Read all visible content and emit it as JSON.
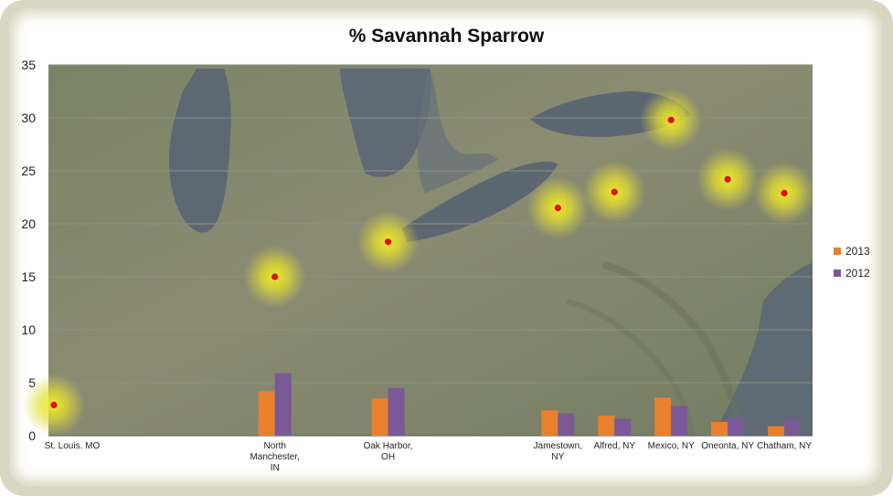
{
  "chart_data": {
    "type": "bar",
    "title": "% Savannah Sparrow",
    "xlabel": "",
    "ylabel": "",
    "ylim": [
      0,
      35
    ],
    "yticks": [
      0,
      5,
      10,
      15,
      20,
      25,
      30,
      35
    ],
    "grid": true,
    "legend_position": "right",
    "categories": [
      [
        "St. Louis. MO"
      ],
      [
        "North",
        "Manchester,",
        "IN"
      ],
      [
        "Oak Harbor,",
        "OH"
      ],
      [
        "Jamestown,",
        "NY"
      ],
      [
        "Alfred, NY"
      ],
      [
        "Mexico, NY"
      ],
      [
        "Oneonta, NY"
      ],
      [
        "Chatham, NY"
      ]
    ],
    "category_positions": [
      1,
      4.5,
      6.5,
      9.5,
      10.5,
      11.5,
      12.5,
      13.5
    ],
    "x_range": [
      0.5,
      14.0
    ],
    "series": [
      {
        "name": "2013",
        "color": "#e8802e",
        "values": [
          0,
          4.2,
          3.5,
          2.4,
          1.9,
          3.6,
          1.3,
          0.9
        ]
      },
      {
        "name": "2012",
        "color": "#7a5a96",
        "values": [
          0,
          5.9,
          4.5,
          2.1,
          1.6,
          2.8,
          1.7,
          1.6
        ]
      }
    ],
    "points": {
      "description_color": "#e01010",
      "values": [
        2.9,
        15.0,
        18.3,
        21.5,
        23.0,
        29.8,
        24.2,
        22.9
      ]
    }
  }
}
